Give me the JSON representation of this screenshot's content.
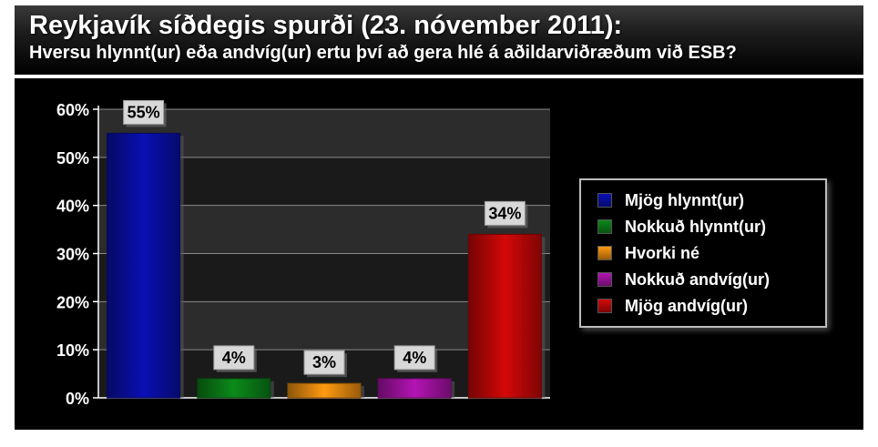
{
  "header": {
    "title": "Reykjavík síðdegis spurði (23. nóvember 2011):",
    "subtitle": "Hversu hlynnt(ur) eða andvíg(ur) ertu því að gera hlé á aðildarviðræðum við ESB?"
  },
  "chart_data": {
    "type": "bar",
    "categories": [
      "Mjög hlynnt(ur)",
      "Nokkuð hlynnt(ur)",
      "Hvorki né",
      "Nokkuð andvíg(ur)",
      "Mjög andvíg(ur)"
    ],
    "values": [
      55,
      4,
      3,
      4,
      34
    ],
    "value_labels": [
      "55%",
      "4%",
      "3%",
      "4%",
      "34%"
    ],
    "colors": [
      "#0a10b4",
      "#0c8a1a",
      "#ff9a10",
      "#b414b4",
      "#d40808"
    ],
    "yticks": [
      "0%",
      "10%",
      "20%",
      "30%",
      "40%",
      "50%",
      "60%"
    ],
    "ylim": [
      0,
      60
    ],
    "grid": true,
    "legend_position": "right",
    "title": "",
    "xlabel": "",
    "ylabel": ""
  }
}
